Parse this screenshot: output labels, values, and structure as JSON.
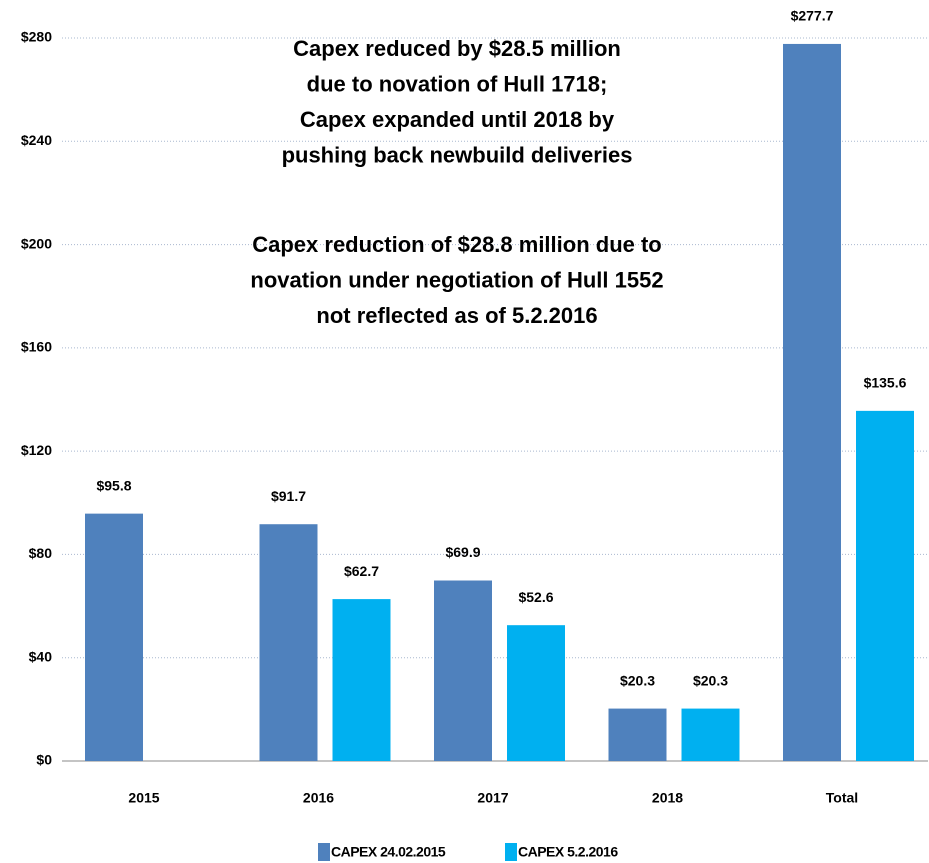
{
  "chart_data": {
    "type": "bar",
    "categories": [
      "2015",
      "2016",
      "2017",
      "2018",
      "Total"
    ],
    "series": [
      {
        "name": "CAPEX 24.02.2015",
        "color": "#4f81bd",
        "values": [
          95.8,
          91.7,
          69.9,
          20.3,
          277.7
        ],
        "value_labels": [
          "$95.8",
          "$91.7",
          "$69.9",
          "$20.3",
          "$277.7"
        ]
      },
      {
        "name": "CAPEX 5.2.2016",
        "color": "#00b0f0",
        "values": [
          null,
          62.7,
          52.6,
          20.3,
          135.6
        ],
        "value_labels": [
          null,
          "$62.7",
          "$52.6",
          "$20.3",
          "$135.6"
        ]
      }
    ],
    "ylim": [
      0,
      280
    ],
    "yticks": [
      {
        "value": 0,
        "label": "$0"
      },
      {
        "value": 40,
        "label": "$40"
      },
      {
        "value": 80,
        "label": "$80"
      },
      {
        "value": 120,
        "label": "$120"
      },
      {
        "value": 160,
        "label": "$160"
      },
      {
        "value": 200,
        "label": "$200"
      },
      {
        "value": 240,
        "label": "$240"
      },
      {
        "value": 280,
        "label": "$280"
      }
    ],
    "grid": true,
    "legend": "bottom",
    "annotations": [
      {
        "lines": [
          "Capex reduced by $28.5 million",
          "due to novation of Hull 1718;",
          "Capex expanded until 2018 by",
          "pushing back newbuild deliveries"
        ]
      },
      {
        "lines": [
          "Capex reduction of $28.8 million due to",
          "novation under negotiation of Hull 1552",
          "not reflected as of 5.2.2016"
        ]
      }
    ]
  }
}
